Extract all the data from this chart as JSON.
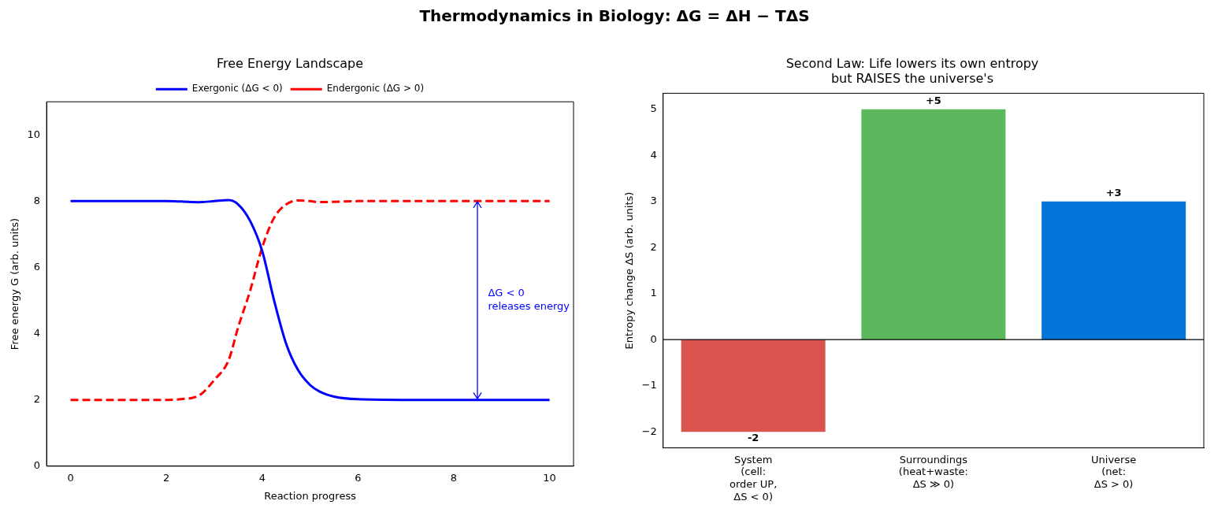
{
  "chart_data": [
    {
      "type": "line",
      "title": "Free Energy Landscape",
      "xlabel": "Reaction progress",
      "ylabel": "Free energy G (arb. units)",
      "xlim": [
        -0.5,
        10.5
      ],
      "ylim": [
        0,
        11
      ],
      "xticks": [
        0,
        2,
        4,
        6,
        8,
        10
      ],
      "yticks": [
        0,
        2,
        4,
        6,
        8,
        10
      ],
      "legend": "top",
      "marker": "none",
      "x": [
        0,
        1,
        2,
        2.3,
        2.7,
        3,
        3.3,
        3.5,
        3.75,
        4,
        4.25,
        4.5,
        4.75,
        5,
        5.2,
        5.5,
        6,
        7,
        8,
        9,
        10
      ],
      "series": [
        {
          "name": "Exergonic (ΔG < 0)",
          "color": "#0000ff",
          "line_style": "solid",
          "values": [
            8,
            8,
            8,
            7.99,
            7.97,
            8,
            8.03,
            7.9,
            7.4,
            6.5,
            5.0,
            3.7,
            2.9,
            2.45,
            2.25,
            2.1,
            2.02,
            2,
            2,
            2,
            2
          ]
        },
        {
          "name": "Endergonic (ΔG > 0)",
          "color": "#ff0000",
          "line_style": "dashed",
          "values": [
            2,
            2,
            2,
            2.02,
            2.15,
            2.6,
            3.2,
            4.2,
            5.3,
            6.6,
            7.5,
            7.9,
            8.02,
            8,
            7.97,
            7.98,
            8,
            8,
            8,
            8,
            8
          ]
        }
      ],
      "annotations": [
        "Thermodynamics in Biology: ΔG = ΔH − TΔS",
        "ΔG < 0\nreleases energy"
      ]
    },
    {
      "type": "bar",
      "title": "Second Law: Life lowers its own entropy\nbut RAISES the universe's",
      "ylabel": "Entropy change ΔS (arb. units)",
      "categories": [
        "System\n(cell:\norder UP,\nΔS < 0)",
        "Surroundings\n(heat+waste:\nΔS ≫ 0)",
        "Universe\n(net:\nΔS > 0)"
      ],
      "values": [
        -2,
        5,
        3
      ],
      "colors": [
        "#d9534f",
        "#5cb85c",
        "#0275d8"
      ],
      "ylim": [
        -2.35,
        5.35
      ],
      "yticks": [
        -2,
        -1,
        0,
        1,
        2,
        3,
        4,
        5
      ],
      "value_labels": [
        "-2",
        "+5",
        "+3"
      ],
      "ref_lines": [
        {
          "axis": "y",
          "value": 0,
          "color": "#000000"
        }
      ]
    }
  ]
}
